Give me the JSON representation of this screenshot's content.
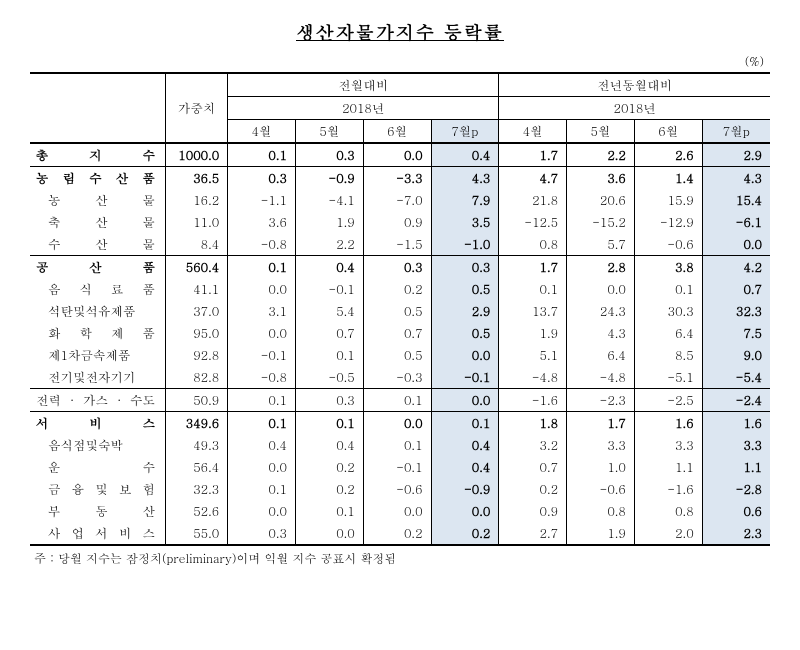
{
  "title": "생산자물가지수 등락률",
  "unit_label": "(%)",
  "footnote": "주 : 당월 지수는 잠정치(preliminary)이며 익월 지수 공표시 확정됨",
  "colors": {
    "highlight": "#dce6f1",
    "background": "#ffffff",
    "text": "#000000",
    "border": "#000000"
  },
  "header": {
    "weight": "가중치",
    "group_mom": "전월대비",
    "group_yoy": "전년동월대비",
    "year": "2018년",
    "months": {
      "m4": "4월",
      "m5": "5월",
      "m6": "6월",
      "m7p": "7월p"
    }
  },
  "rows": [
    {
      "label": "총　　지　　수",
      "indent": false,
      "bold": true,
      "topBorder": "thick",
      "weight": "1000.0",
      "mom": [
        "0.1",
        "0.3",
        "0.0",
        "0.4"
      ],
      "yoy": [
        "1.7",
        "2.2",
        "2.6",
        "2.9"
      ]
    },
    {
      "label": "농 림 수 산 품",
      "indent": false,
      "bold": true,
      "topBorder": "thin",
      "weight": "36.5",
      "mom": [
        "0.3",
        "-0.9",
        "-3.3",
        "4.3"
      ],
      "yoy": [
        "4.7",
        "3.6",
        "1.4",
        "4.3"
      ]
    },
    {
      "label": "농　산　물",
      "indent": true,
      "bold": false,
      "topBorder": "none",
      "weight": "16.2",
      "mom": [
        "-1.1",
        "-4.1",
        "-7.0",
        "7.9"
      ],
      "yoy": [
        "21.8",
        "20.6",
        "15.9",
        "15.4"
      ]
    },
    {
      "label": "축　산　물",
      "indent": true,
      "bold": false,
      "topBorder": "none",
      "weight": "11.0",
      "mom": [
        "3.6",
        "1.9",
        "0.9",
        "3.5"
      ],
      "yoy": [
        "-12.5",
        "-15.2",
        "-12.9",
        "-6.1"
      ]
    },
    {
      "label": "수　산　물",
      "indent": true,
      "bold": false,
      "topBorder": "none",
      "weight": "8.4",
      "mom": [
        "-0.8",
        "2.2",
        "-1.5",
        "-1.0"
      ],
      "yoy": [
        "0.8",
        "5.7",
        "-0.6",
        "0.0"
      ]
    },
    {
      "label": "공　　산　　품",
      "indent": false,
      "bold": true,
      "topBorder": "thin",
      "weight": "560.4",
      "mom": [
        "0.1",
        "0.4",
        "0.3",
        "0.3"
      ],
      "yoy": [
        "1.7",
        "2.8",
        "3.8",
        "4.2"
      ]
    },
    {
      "label": "음 식 료 품",
      "indent": true,
      "bold": false,
      "topBorder": "none",
      "weight": "41.1",
      "mom": [
        "0.0",
        "-0.1",
        "0.2",
        "0.5"
      ],
      "yoy": [
        "0.1",
        "0.0",
        "0.1",
        "0.7"
      ]
    },
    {
      "label": "석탄및석유제품",
      "indent": true,
      "bold": false,
      "topBorder": "none",
      "weight": "37.0",
      "mom": [
        "3.1",
        "5.4",
        "0.5",
        "2.9"
      ],
      "yoy": [
        "13.7",
        "24.3",
        "30.3",
        "32.3"
      ]
    },
    {
      "label": "화 학 제 품",
      "indent": true,
      "bold": false,
      "topBorder": "none",
      "weight": "95.0",
      "mom": [
        "0.0",
        "0.7",
        "0.7",
        "0.5"
      ],
      "yoy": [
        "1.9",
        "4.3",
        "6.4",
        "7.5"
      ]
    },
    {
      "label": "제1차금속제품",
      "indent": true,
      "bold": false,
      "topBorder": "none",
      "weight": "92.8",
      "mom": [
        "-0.1",
        "0.1",
        "0.5",
        "0.0"
      ],
      "yoy": [
        "5.1",
        "6.4",
        "8.5",
        "9.0"
      ]
    },
    {
      "label": "전기및전자기기",
      "indent": true,
      "bold": false,
      "topBorder": "none",
      "weight": "82.8",
      "mom": [
        "-0.8",
        "-0.5",
        "-0.3",
        "-0.1"
      ],
      "yoy": [
        "-4.8",
        "-4.8",
        "-5.1",
        "-5.4"
      ]
    },
    {
      "label": "전력 · 가스 · 수도",
      "indent": false,
      "bold": false,
      "topBorder": "thin",
      "weight": "50.9",
      "mom": [
        "0.1",
        "0.3",
        "0.1",
        "0.0"
      ],
      "yoy": [
        "-1.6",
        "-2.3",
        "-2.5",
        "-2.4"
      ]
    },
    {
      "label": "서　　비　　스",
      "indent": false,
      "bold": true,
      "topBorder": "thin",
      "weight": "349.6",
      "mom": [
        "0.1",
        "0.1",
        "0.0",
        "0.1"
      ],
      "yoy": [
        "1.8",
        "1.7",
        "1.6",
        "1.6"
      ]
    },
    {
      "label": "음식점및숙박",
      "indent": true,
      "bold": false,
      "topBorder": "none",
      "weight": "49.3",
      "mom": [
        "0.4",
        "0.4",
        "0.1",
        "0.4"
      ],
      "yoy": [
        "3.2",
        "3.3",
        "3.3",
        "3.3"
      ]
    },
    {
      "label": "운　　　수",
      "indent": true,
      "bold": false,
      "topBorder": "none",
      "weight": "56.4",
      "mom": [
        "0.0",
        "0.2",
        "-0.1",
        "0.4"
      ],
      "yoy": [
        "0.7",
        "1.0",
        "1.1",
        "1.1"
      ]
    },
    {
      "label": "금 융 및 보 험",
      "indent": true,
      "bold": false,
      "topBorder": "none",
      "weight": "32.3",
      "mom": [
        "0.1",
        "0.2",
        "-0.6",
        "-0.9"
      ],
      "yoy": [
        "0.2",
        "-0.6",
        "-1.6",
        "-2.8"
      ]
    },
    {
      "label": "부　동　산",
      "indent": true,
      "bold": false,
      "topBorder": "none",
      "weight": "52.6",
      "mom": [
        "0.0",
        "0.1",
        "0.0",
        "0.0"
      ],
      "yoy": [
        "0.9",
        "0.8",
        "0.8",
        "0.6"
      ]
    },
    {
      "label": "사 업 서 비 스",
      "indent": true,
      "bold": false,
      "topBorder": "none",
      "weight": "55.0",
      "mom": [
        "0.3",
        "0.0",
        "0.2",
        "0.2"
      ],
      "yoy": [
        "2.7",
        "1.9",
        "2.0",
        "2.3"
      ]
    }
  ]
}
